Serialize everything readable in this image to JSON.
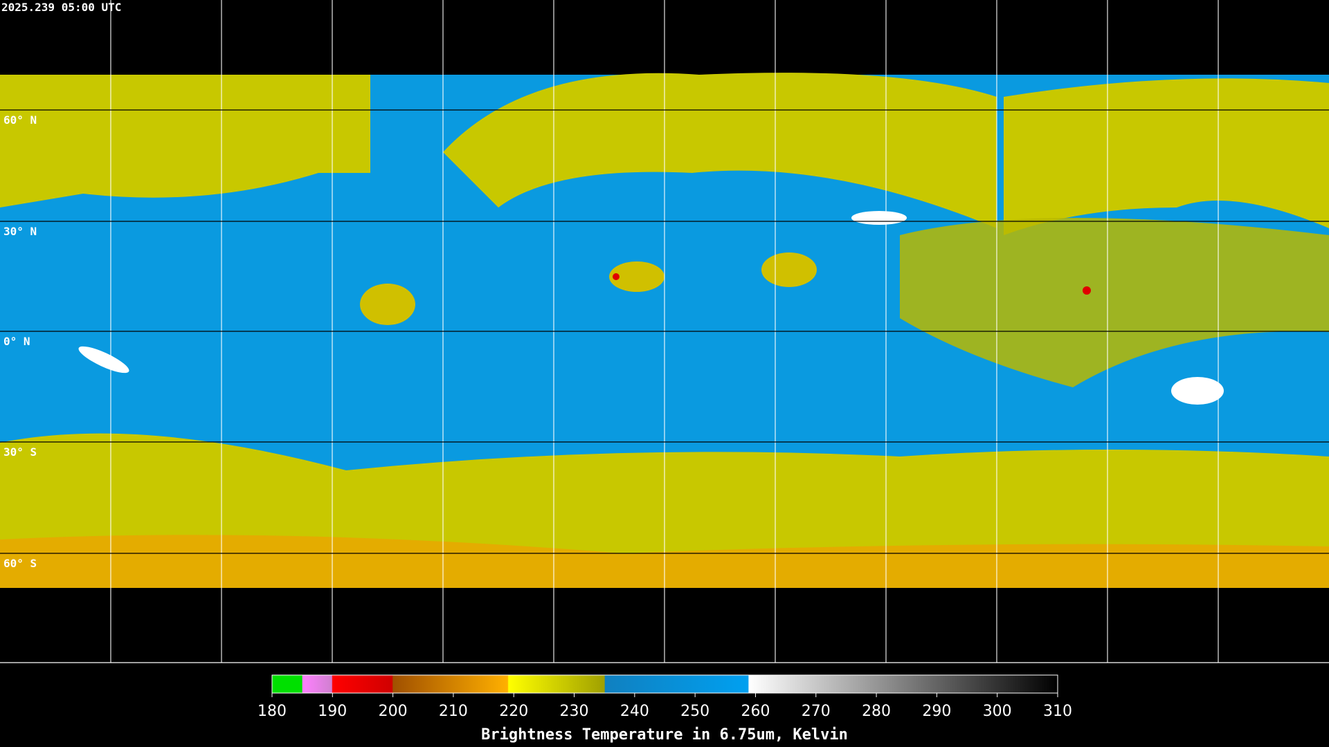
{
  "timestamp": "2025.239 05:00 UTC",
  "latitude_labels": [
    "60° N",
    "30° N",
    "0° N",
    "30° S",
    "60° S"
  ],
  "colorbar": {
    "label": "Brightness Temperature in 6.75um, Kelvin",
    "range": [
      180,
      310
    ],
    "ticks": [
      180,
      190,
      200,
      210,
      220,
      230,
      240,
      250,
      260,
      270,
      280,
      290,
      300,
      310
    ]
  }
}
